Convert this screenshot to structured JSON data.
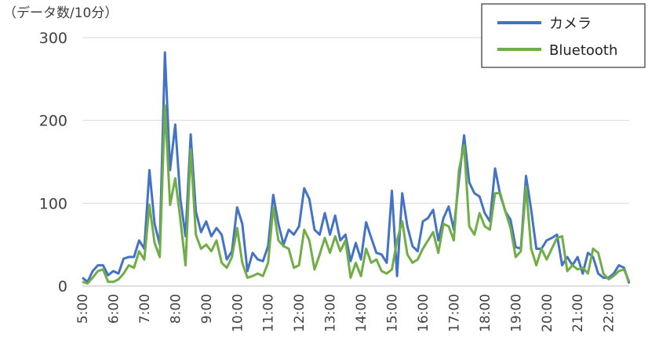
{
  "chart_data": {
    "type": "line",
    "unit_label": "（データ数/10分）",
    "ylim": [
      0,
      300
    ],
    "y_ticks": [
      0,
      100,
      200,
      300
    ],
    "x_tick_labels": [
      "5:00",
      "6:00",
      "7:00",
      "8:00",
      "9:00",
      "10:00",
      "11:00",
      "12:00",
      "13:00",
      "14:00",
      "15:00",
      "16:00",
      "17:00",
      "18:00",
      "19:00",
      "20:00",
      "21:00",
      "22:00"
    ],
    "x_start": "5:00",
    "x_interval_minutes": 10,
    "grid": true,
    "legend_position": "top-right",
    "series": [
      {
        "name": "カメラ",
        "color": "#4472C4",
        "values": [
          10,
          5,
          18,
          25,
          25,
          13,
          18,
          15,
          33,
          35,
          35,
          55,
          45,
          140,
          75,
          50,
          282,
          140,
          195,
          105,
          60,
          183,
          90,
          65,
          78,
          60,
          70,
          62,
          32,
          42,
          95,
          75,
          18,
          40,
          32,
          30,
          48,
          110,
          75,
          50,
          68,
          62,
          72,
          118,
          105,
          68,
          62,
          88,
          62,
          85,
          55,
          62,
          30,
          52,
          32,
          77,
          58,
          40,
          38,
          28,
          115,
          12,
          112,
          72,
          48,
          42,
          78,
          82,
          92,
          55,
          82,
          96,
          68,
          128,
          182,
          125,
          112,
          108,
          88,
          78,
          142,
          110,
          90,
          80,
          47,
          45,
          133,
          92,
          45,
          45,
          55,
          58,
          62,
          25,
          35,
          25,
          35,
          15,
          40,
          35,
          15,
          10,
          10,
          15,
          25,
          22,
          3
        ]
      },
      {
        "name": "Bluetooth",
        "color": "#70AD47",
        "values": [
          5,
          3,
          10,
          18,
          20,
          5,
          5,
          8,
          15,
          25,
          22,
          42,
          32,
          98,
          52,
          35,
          218,
          98,
          130,
          80,
          25,
          165,
          62,
          45,
          50,
          42,
          55,
          28,
          22,
          35,
          70,
          28,
          10,
          12,
          15,
          12,
          28,
          95,
          55,
          48,
          45,
          22,
          25,
          68,
          55,
          20,
          38,
          58,
          40,
          60,
          42,
          55,
          10,
          28,
          12,
          45,
          28,
          32,
          18,
          15,
          20,
          55,
          78,
          38,
          28,
          32,
          45,
          55,
          65,
          40,
          75,
          72,
          55,
          140,
          170,
          72,
          62,
          88,
          72,
          68,
          112,
          112,
          90,
          70,
          35,
          42,
          120,
          45,
          25,
          45,
          32,
          45,
          58,
          60,
          18,
          25,
          20,
          22,
          15,
          45,
          40,
          15,
          8,
          12,
          18,
          20,
          5
        ]
      }
    ]
  }
}
